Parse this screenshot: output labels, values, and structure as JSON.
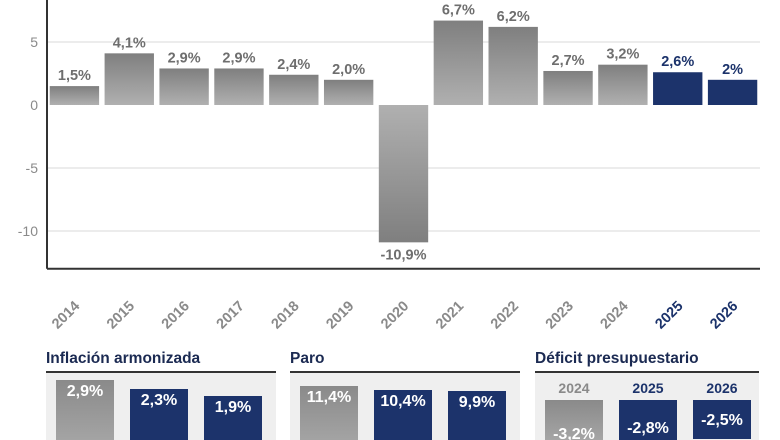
{
  "chart_data": [
    {
      "type": "bar",
      "title": "",
      "xlabel": "",
      "ylabel": "",
      "ylim": [
        -13,
        8.5
      ],
      "yticks": [
        5,
        0,
        -5,
        -10
      ],
      "categories": [
        "2014",
        "2015",
        "2016",
        "2017",
        "2018",
        "2019",
        "2020",
        "2021",
        "2022",
        "2023",
        "2024",
        "2025",
        "2026"
      ],
      "values": [
        1.5,
        4.1,
        2.9,
        2.9,
        2.4,
        2.0,
        -10.9,
        6.7,
        6.2,
        2.7,
        3.2,
        2.6,
        2
      ],
      "labels": [
        "1,5%",
        "4,1%",
        "2,9%",
        "2,9%",
        "2,4%",
        "2,0%",
        "-10,9%",
        "6,7%",
        "6,2%",
        "2,7%",
        "3,2%",
        "2,6%",
        "2%"
      ],
      "highlight": [
        false,
        false,
        false,
        false,
        false,
        false,
        false,
        false,
        false,
        false,
        false,
        true,
        true
      ],
      "grid": true
    },
    {
      "type": "bar",
      "title": "Inflación armonizada",
      "values": [
        2.9,
        2.3,
        1.9
      ],
      "labels": [
        "2,9%",
        "2,3%",
        "1,9%"
      ],
      "highlight": [
        false,
        true,
        true
      ]
    },
    {
      "type": "bar",
      "title": "Paro",
      "values": [
        11.4,
        10.4,
        9.9
      ],
      "labels": [
        "11,4%",
        "10,4%",
        "9,9%"
      ],
      "highlight": [
        false,
        true,
        true
      ]
    },
    {
      "type": "bar",
      "title": "Déficit presupuestario",
      "categories": [
        "2024",
        "2025",
        "2026"
      ],
      "values": [
        -3.2,
        -2.8,
        -2.5
      ],
      "labels": [
        "-3,2%",
        "-2,8%",
        "-2,5%"
      ],
      "highlight": [
        false,
        true,
        true
      ]
    }
  ],
  "colors": {
    "grey": "#9a9a9a",
    "navy": "#1c336b",
    "label_grey": "#6e6e6e",
    "axis": "#333333",
    "grid": "#d9d9d9"
  }
}
